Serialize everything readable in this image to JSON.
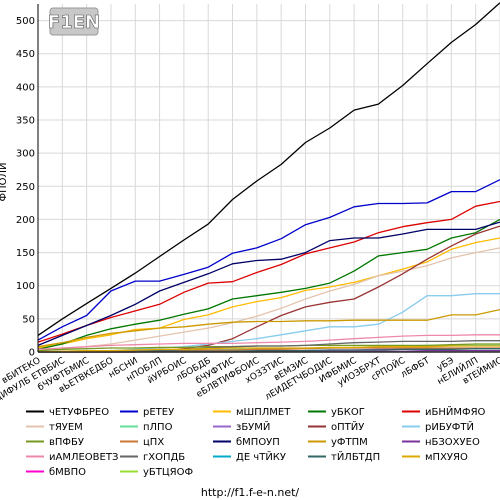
{
  "chart_data": {
    "type": "line",
    "logo_text": "F1EN",
    "ylabel": "ФПОЛИ",
    "footer": "http://f1.f-e-n.net/",
    "y_ticks": [
      0,
      50,
      100,
      150,
      200,
      250,
      300,
      350,
      400,
      450,
      500
    ],
    "ylim": [
      0,
      525
    ],
    "grid": true,
    "legend_position": "bottom",
    "categories": [
      "вБИТЕКО",
      "дИФУЛБ ЕТВБИС",
      "бЧУФТБМИС",
      "вЬЕТВКЕДБО",
      "нБСНИ",
      "нПОБЛП",
      "йУРБОИС",
      "лБОБДБ",
      "бЧУФТИС",
      "еБЛВТИФБОИС",
      "хОЗЗТИС",
      "вЕМЗИС",
      "лЕИДЕТЧБОДИС",
      "ИФБМИС",
      "уИОЗБРХТ",
      "сРПОЙС",
      "лБФБТ",
      "уБЭ",
      "нЕЛИЙЛП",
      "вТЕЙМИС"
    ],
    "series": [
      {
        "name": "чЕТУФБРЕО",
        "color": "#000000",
        "values": [
          25,
          50,
          73,
          96,
          119,
          144,
          169,
          193,
          230,
          258,
          283,
          316,
          338,
          365,
          374,
          402,
          435,
          467,
          494,
          527
        ]
      },
      {
        "name": "рЕТЕУ",
        "color": "#0000cc",
        "values": [
          18,
          38,
          55,
          92,
          107,
          107,
          117,
          128,
          149,
          157,
          171,
          192,
          203,
          219,
          224,
          224,
          225,
          242,
          242,
          260
        ]
      },
      {
        "name": "мШПЛМЕТ",
        "color": "#ffbb00",
        "values": [
          6,
          12,
          20,
          26,
          34,
          36,
          49,
          56,
          68,
          76,
          82,
          93,
          98,
          105,
          115,
          125,
          136,
          155,
          165,
          172
        ]
      },
      {
        "name": "уБКОГ",
        "color": "#007700",
        "values": [
          4,
          12,
          25,
          35,
          42,
          48,
          57,
          65,
          80,
          85,
          90,
          96,
          104,
          122,
          145,
          150,
          155,
          172,
          180,
          200
        ]
      },
      {
        "name": "иБНЙМФЯО",
        "color": "#dd0000",
        "values": [
          15,
          27,
          40,
          52,
          62,
          72,
          90,
          104,
          106,
          120,
          132,
          148,
          157,
          166,
          180,
          189,
          195,
          200,
          220,
          227
        ]
      },
      {
        "name": "тЯУЕМ",
        "color": "#e3c3ad",
        "values": [
          2,
          4,
          8,
          12,
          18,
          24,
          30,
          36,
          44,
          54,
          66,
          80,
          92,
          102,
          115,
          122,
          130,
          142,
          150,
          157
        ]
      },
      {
        "name": "пЛПО",
        "color": "#66dd99",
        "values": [
          0,
          1,
          2,
          2,
          2,
          3,
          3,
          3,
          4,
          4,
          5,
          5,
          6,
          7,
          8,
          9,
          10,
          10,
          10,
          10
        ]
      },
      {
        "name": "зБУМЙ",
        "color": "#9966cc",
        "values": [
          0,
          0,
          0,
          0,
          0,
          1,
          1,
          1,
          1,
          2,
          2,
          2,
          3,
          3,
          4,
          4,
          4,
          5,
          5,
          5
        ]
      },
      {
        "name": "оПТЙУ",
        "color": "#993333",
        "values": [
          0,
          0,
          0,
          0,
          0,
          2,
          5,
          10,
          20,
          38,
          55,
          68,
          75,
          80,
          98,
          118,
          140,
          160,
          178,
          190
        ]
      },
      {
        "name": "рИБУФТЙ",
        "color": "#88ccee",
        "values": [
          0,
          0,
          1,
          2,
          4,
          6,
          8,
          12,
          16,
          20,
          26,
          32,
          38,
          38,
          42,
          60,
          85,
          85,
          88,
          88
        ]
      },
      {
        "name": "вПФБУ",
        "color": "#779922",
        "values": [
          2,
          4,
          5,
          6,
          6,
          7,
          7,
          8,
          8,
          9,
          9,
          10,
          10,
          10,
          10,
          10,
          10,
          11,
          12,
          12
        ]
      },
      {
        "name": "цПХ",
        "color": "#cc7733",
        "values": [
          0,
          0,
          0,
          1,
          1,
          2,
          2,
          3,
          3,
          4,
          4,
          5,
          6,
          6,
          6,
          6,
          6,
          6,
          6,
          6
        ]
      },
      {
        "name": "бМПОУП",
        "color": "#000066",
        "values": [
          10,
          25,
          40,
          55,
          72,
          92,
          105,
          118,
          133,
          138,
          140,
          150,
          168,
          172,
          172,
          178,
          185,
          185,
          185,
          196
        ]
      },
      {
        "name": "уФТПМ",
        "color": "#cc9900",
        "values": [
          8,
          14,
          22,
          28,
          32,
          36,
          38,
          42,
          45,
          46,
          46,
          47,
          47,
          48,
          48,
          48,
          48,
          56,
          56,
          64
        ]
      },
      {
        "name": "нБЗОХУЕО",
        "color": "#773399",
        "values": [
          0,
          0,
          0,
          0,
          0,
          0,
          0,
          0,
          0,
          0,
          1,
          1,
          1,
          1,
          1,
          1,
          2,
          2,
          2,
          2
        ]
      },
      {
        "name": "иАМЛЕОВЕТЗ",
        "color": "#ee88aa",
        "values": [
          4,
          6,
          8,
          10,
          11,
          12,
          13,
          13,
          13,
          14,
          15,
          16,
          18,
          20,
          22,
          24,
          25,
          25,
          26,
          26
        ]
      },
      {
        "name": "гХОПДБ",
        "color": "#666666",
        "values": [
          0,
          0,
          0,
          0,
          1,
          2,
          4,
          6,
          8,
          9,
          9,
          10,
          12,
          14,
          15,
          16,
          16,
          16,
          17,
          17
        ]
      },
      {
        "name": "ДЕ чТЙКУ",
        "color": "#00aacc",
        "values": [
          0,
          0,
          0,
          0,
          0,
          0,
          0,
          0,
          0,
          0,
          0,
          0,
          0,
          0,
          0,
          0,
          0,
          0,
          0,
          0
        ]
      },
      {
        "name": "тЙЛБТДП",
        "color": "#336666",
        "values": [
          0,
          0,
          0,
          0,
          0,
          1,
          1,
          1,
          1,
          2,
          2,
          2,
          3,
          3,
          3,
          4,
          4,
          4,
          5,
          5
        ]
      },
      {
        "name": "мПХУЯО",
        "color": "#ddaa00",
        "values": [
          0,
          1,
          2,
          2,
          3,
          4,
          4,
          5,
          6,
          6,
          6,
          6,
          7,
          7,
          8,
          8,
          8,
          9,
          9,
          9
        ]
      },
      {
        "name": "бМВПО",
        "color": "#ff00cc",
        "values": [
          0,
          0,
          0,
          0,
          0,
          0,
          0,
          0,
          0,
          0,
          0,
          0,
          0,
          0,
          0,
          0,
          0,
          0,
          0,
          0
        ]
      },
      {
        "name": "уБТЦЯОФ",
        "color": "#99dd33",
        "values": [
          0,
          0,
          0,
          0,
          0,
          0,
          0,
          0,
          0,
          0,
          0,
          0,
          0,
          0,
          0,
          0,
          0,
          0,
          0,
          0
        ]
      }
    ]
  }
}
